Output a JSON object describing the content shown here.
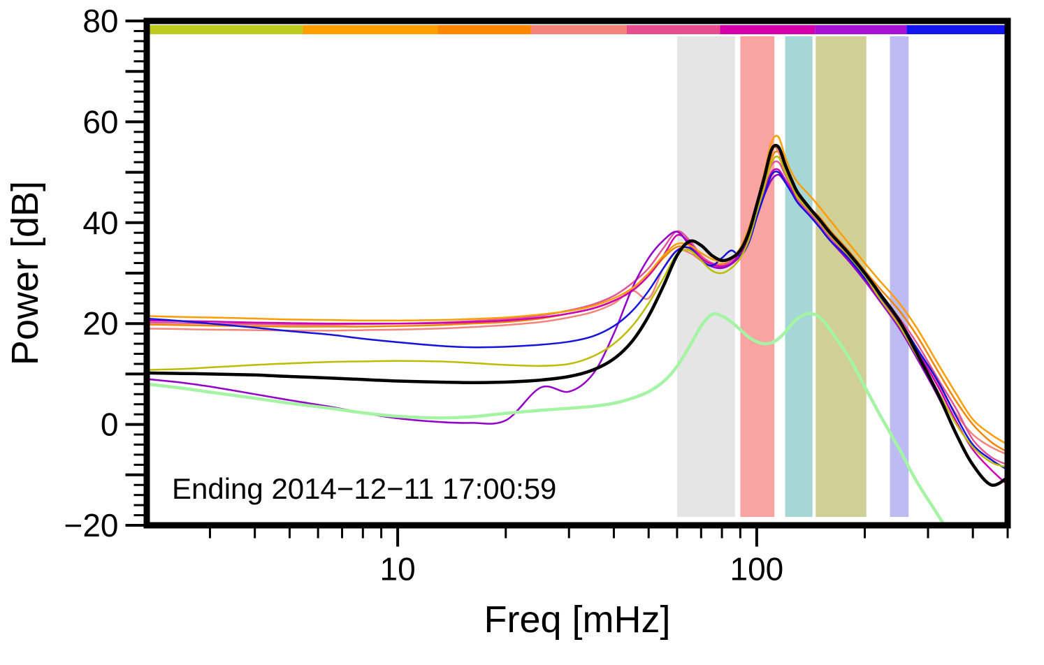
{
  "annotation": "Ending 2014−12−11 17:00:59",
  "chart_data": {
    "type": "line",
    "title": "",
    "xlabel": "Freq [mHz]",
    "ylabel": "Power [dB]",
    "annotation": "Ending 2014−12−11 17:00:59",
    "xscale": "log",
    "xlim": [
      2,
      500
    ],
    "ylim": [
      -20,
      80
    ],
    "grid": false,
    "legend": "none",
    "yticks": {
      "major": [
        -20,
        0,
        20,
        40,
        60,
        80
      ],
      "labels": [
        "−20",
        "0",
        "20",
        "40",
        "60",
        "80"
      ],
      "minor_step": 2
    },
    "xticks": {
      "major": [
        10,
        100
      ],
      "labels": [
        "10",
        "100"
      ],
      "minor": [
        3,
        4,
        5,
        6,
        7,
        8,
        9,
        20,
        30,
        40,
        50,
        60,
        70,
        80,
        90,
        200,
        300,
        400,
        500
      ]
    },
    "top_colorbar": [
      {
        "from": 0.0,
        "to": 0.179,
        "color": "#bfca1e"
      },
      {
        "from": 0.179,
        "to": 0.337,
        "color": "#ffa000"
      },
      {
        "from": 0.337,
        "to": 0.446,
        "color": "#ff8700"
      },
      {
        "from": 0.446,
        "to": 0.558,
        "color": "#f4837a"
      },
      {
        "from": 0.558,
        "to": 0.667,
        "color": "#e74e8e"
      },
      {
        "from": 0.667,
        "to": 0.778,
        "color": "#d400aa"
      },
      {
        "from": 0.778,
        "to": 0.885,
        "color": "#a512d2"
      },
      {
        "from": 0.885,
        "to": 1.0,
        "color": "#1515f0"
      }
    ],
    "shaded_bands_mhz": [
      {
        "x1": 60,
        "x2": 87,
        "color": "#e5e5e5"
      },
      {
        "x1": 90,
        "x2": 112,
        "color": "#f9a3a3"
      },
      {
        "x1": 120,
        "x2": 143,
        "color": "#a6d7d7"
      },
      {
        "x1": 146,
        "x2": 202,
        "color": "#cfcf96"
      },
      {
        "x1": 235,
        "x2": 265,
        "color": "#bcbcf2"
      }
    ],
    "x": [
      2,
      2.5,
      3,
      4,
      5,
      6.5,
      8,
      10,
      13,
      16,
      20,
      25,
      30,
      35,
      40,
      45,
      50,
      55,
      60,
      65,
      70,
      75,
      80,
      85,
      90,
      95,
      100,
      105,
      110,
      115,
      120,
      125,
      130,
      140,
      150,
      160,
      180,
      200,
      220,
      250,
      280,
      320,
      360,
      400,
      450,
      500
    ],
    "series": [
      {
        "name": "orange-2",
        "color": "#f28500",
        "width": 2.5,
        "y": [
          19.8,
          19.7,
          19.6,
          19.5,
          19.4,
          19.4,
          19.4,
          19.5,
          19.7,
          20,
          20.3,
          21,
          22,
          23,
          24.5,
          26.5,
          29.5,
          33,
          35.2,
          34.8,
          33.2,
          32,
          31.8,
          32.5,
          34.5,
          38,
          43,
          48,
          53,
          54,
          51,
          48,
          45.5,
          43,
          41,
          38.5,
          34.5,
          30.5,
          27,
          22.5,
          17.5,
          10.5,
          4.5,
          0,
          -3.5,
          -5.5
        ]
      },
      {
        "name": "salmon",
        "color": "#f4837a",
        "width": 2.5,
        "y": [
          19,
          18.9,
          18.8,
          18.7,
          18.6,
          18.6,
          18.7,
          18.8,
          19,
          19.3,
          19.7,
          20.3,
          21.2,
          22.3,
          24,
          26.5,
          25,
          31,
          34.5,
          34,
          32.5,
          31.5,
          31.2,
          32,
          34,
          37.5,
          43,
          49,
          55,
          54,
          50,
          47.5,
          45,
          42.5,
          40,
          37.5,
          33.5,
          29.5,
          25.5,
          20.5,
          15,
          8,
          2,
          -2,
          -4.5,
          -6
        ]
      },
      {
        "name": "pink",
        "color": "#e0559a",
        "width": 2.5,
        "y": [
          20.2,
          20.1,
          20,
          19.9,
          19.8,
          19.8,
          19.9,
          20,
          20.2,
          20.5,
          20.9,
          21.6,
          22.6,
          23.8,
          25.5,
          28,
          31,
          35,
          38.3,
          36.5,
          33.5,
          32,
          31.5,
          32.5,
          34.5,
          38,
          43.5,
          48,
          51.5,
          52,
          49.5,
          47,
          44.5,
          42,
          39.5,
          37,
          33,
          29,
          25.5,
          21,
          16,
          9,
          3,
          -3,
          -6.5,
          -8
        ]
      },
      {
        "name": "magenta",
        "color": "#cc00b4",
        "width": 2.5,
        "y": [
          20.6,
          20.5,
          20.4,
          20.2,
          20.1,
          20,
          20,
          20,
          20.1,
          20.3,
          20.6,
          21.2,
          22,
          23,
          24.5,
          26.5,
          29.5,
          33.5,
          37.5,
          36,
          33,
          31.8,
          31.3,
          32,
          34,
          37,
          42,
          46.5,
          50,
          50.5,
          48.5,
          46.5,
          44,
          41.5,
          39,
          36.5,
          32.5,
          28.5,
          25,
          20,
          14.5,
          7.5,
          0.5,
          -5,
          -9,
          -12
        ]
      },
      {
        "name": "purple",
        "color": "#9400c8",
        "width": 2.5,
        "y": [
          9,
          8.3,
          7.5,
          6,
          4.8,
          3.5,
          2.3,
          1.2,
          0.5,
          0.3,
          0.8,
          7.3,
          6.5,
          10,
          18,
          27,
          33,
          36.5,
          38.2,
          35.5,
          32.5,
          31.3,
          31,
          31.8,
          33.5,
          36.5,
          41.5,
          45.5,
          48.5,
          49.5,
          48,
          46,
          44,
          41.5,
          39,
          36.5,
          32.5,
          28.5,
          24.5,
          19,
          13,
          5.5,
          -2,
          -8,
          -12,
          -10.5
        ]
      },
      {
        "name": "blue",
        "color": "#1414dc",
        "width": 2.5,
        "y": [
          21,
          20.5,
          20,
          19.2,
          18.5,
          17.8,
          17,
          16.3,
          15.6,
          15.3,
          15.4,
          15.8,
          16.4,
          17.5,
          19.5,
          22.5,
          26.5,
          31,
          34.5,
          35,
          32.5,
          31.5,
          33,
          34.5,
          33.5,
          36,
          41,
          45.5,
          49.5,
          50,
          48,
          46,
          44,
          41.5,
          39,
          36.5,
          33,
          29,
          25.5,
          20.5,
          15,
          8.5,
          1.5,
          -4,
          -7,
          -9
        ]
      },
      {
        "name": "olive",
        "color": "#bcbc00",
        "width": 2.5,
        "y": [
          10.8,
          11,
          11.3,
          11.8,
          12.1,
          12.4,
          12.5,
          12.6,
          12.5,
          12.2,
          11.8,
          11.6,
          12,
          13.5,
          16,
          19.5,
          24,
          29,
          33.8,
          34.5,
          32.5,
          30.5,
          30,
          31,
          33,
          36.5,
          42,
          47,
          52,
          53,
          50,
          47.5,
          45,
          42.5,
          40,
          37.5,
          33.5,
          29.5,
          25,
          19.5,
          13.5,
          6.5,
          0,
          -4.5,
          -7.5,
          -8.5
        ]
      },
      {
        "name": "orange-1",
        "color": "#ff9d00",
        "width": 2.5,
        "y": [
          21.5,
          21.3,
          21.2,
          21,
          20.8,
          20.7,
          20.6,
          20.6,
          20.7,
          20.9,
          21.2,
          21.8,
          22.5,
          23.5,
          25,
          27,
          30,
          33.5,
          35.8,
          35.5,
          34,
          32.8,
          32.3,
          33,
          35,
          39,
          44,
          50,
          56,
          57,
          53,
          50,
          48,
          45.5,
          43,
          40.5,
          36,
          32,
          28.5,
          24,
          19,
          12,
          6,
          1,
          -2,
          -4
        ]
      },
      {
        "name": "light-green",
        "color": "#a4f4a4",
        "width": 4.5,
        "y": [
          8,
          7.2,
          6.4,
          5.2,
          4.2,
          3.2,
          2.3,
          1.6,
          1.3,
          1.5,
          2.2,
          2.8,
          3.2,
          3.6,
          4.2,
          5.2,
          6.5,
          8.5,
          11.5,
          15.5,
          19.5,
          21.8,
          21.5,
          20.3,
          18.8,
          17.3,
          16.4,
          16,
          16.2,
          17,
          18.3,
          19.8,
          21,
          22,
          21.2,
          18.8,
          13.5,
          7.5,
          2,
          -5,
          -11.5,
          -18,
          -24,
          -30,
          null,
          null
        ]
      },
      {
        "name": "black-mean",
        "color": "#000000",
        "width": 4.5,
        "y": [
          10.2,
          10.1,
          10,
          9.8,
          9.5,
          9.2,
          8.9,
          8.6,
          8.4,
          8.3,
          8.4,
          8.8,
          9.5,
          10.8,
          13,
          16.5,
          21.5,
          27.5,
          33.5,
          36.3,
          35.5,
          33.5,
          32.5,
          33,
          34.5,
          38,
          43.5,
          49,
          54.5,
          55,
          51.5,
          48.5,
          46,
          43,
          40.5,
          38,
          34,
          30,
          26,
          20.5,
          14,
          6,
          -2,
          -8,
          -12,
          -10.5
        ]
      }
    ]
  }
}
